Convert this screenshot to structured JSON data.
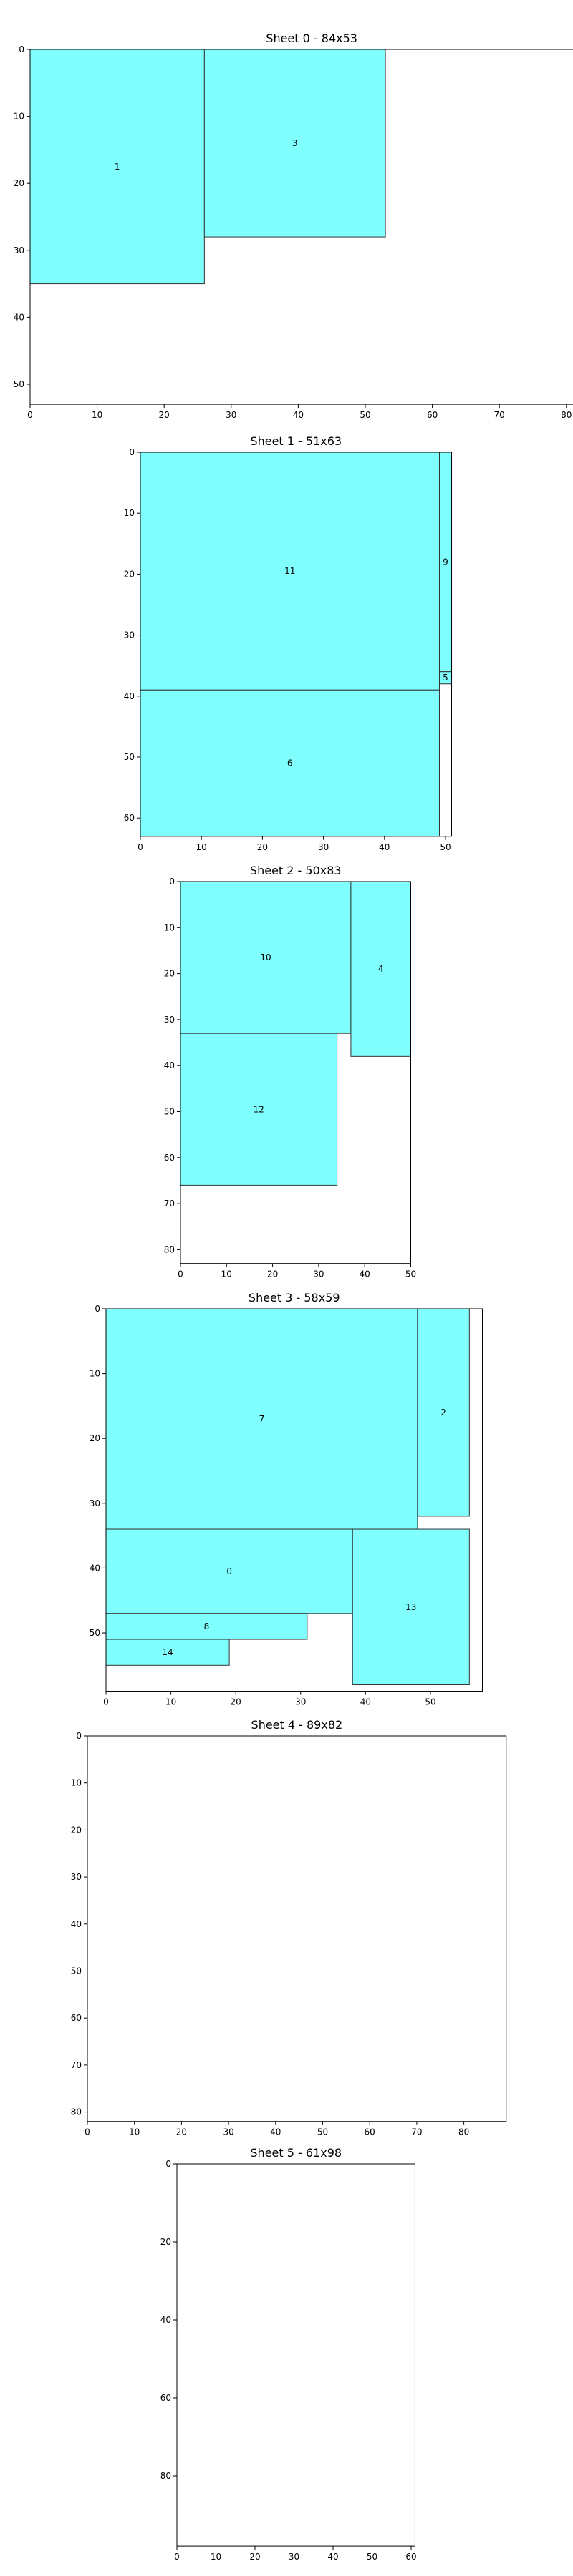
{
  "colors": {
    "piece_fill": "#80ffff",
    "piece_edge": "#333333",
    "sheet_edge": "#000000"
  },
  "chart_data": [
    {
      "type": "rectangles",
      "title": "Sheet 0 - 84x53",
      "xlim": [
        0,
        84
      ],
      "ylim": [
        0,
        53
      ],
      "y_inverted": true,
      "xticks": [
        0,
        10,
        20,
        30,
        40,
        50,
        60,
        70,
        80
      ],
      "yticks": [
        0,
        10,
        20,
        30,
        40,
        50
      ],
      "pieces": [
        {
          "label": "1",
          "x": 0,
          "y": 0,
          "w": 26,
          "h": 35
        },
        {
          "label": "3",
          "x": 26,
          "y": 0,
          "w": 27,
          "h": 28
        }
      ]
    },
    {
      "type": "rectangles",
      "title": "Sheet 1 - 51x63",
      "xlim": [
        0,
        51
      ],
      "ylim": [
        0,
        63
      ],
      "y_inverted": true,
      "xticks": [
        0,
        10,
        20,
        30,
        40,
        50
      ],
      "yticks": [
        0,
        10,
        20,
        30,
        40,
        50,
        60
      ],
      "pieces": [
        {
          "label": "11",
          "x": 0,
          "y": 0,
          "w": 49,
          "h": 39
        },
        {
          "label": "9",
          "x": 49,
          "y": 0,
          "w": 2,
          "h": 36
        },
        {
          "label": "5",
          "x": 49,
          "y": 36,
          "w": 2,
          "h": 2
        },
        {
          "label": "6",
          "x": 0,
          "y": 39,
          "w": 49,
          "h": 24
        }
      ]
    },
    {
      "type": "rectangles",
      "title": "Sheet 2 - 50x83",
      "xlim": [
        0,
        50
      ],
      "ylim": [
        0,
        83
      ],
      "y_inverted": true,
      "xticks": [
        0,
        10,
        20,
        30,
        40,
        50
      ],
      "yticks": [
        0,
        10,
        20,
        30,
        40,
        50,
        60,
        70,
        80
      ],
      "pieces": [
        {
          "label": "10",
          "x": 0,
          "y": 0,
          "w": 37,
          "h": 33
        },
        {
          "label": "4",
          "x": 37,
          "y": 0,
          "w": 13,
          "h": 38
        },
        {
          "label": "12",
          "x": 0,
          "y": 33,
          "w": 34,
          "h": 33
        }
      ]
    },
    {
      "type": "rectangles",
      "title": "Sheet 3 - 58x59",
      "xlim": [
        0,
        58
      ],
      "ylim": [
        0,
        59
      ],
      "y_inverted": true,
      "xticks": [
        0,
        10,
        20,
        30,
        40,
        50
      ],
      "yticks": [
        0,
        10,
        20,
        30,
        40,
        50
      ],
      "pieces": [
        {
          "label": "7",
          "x": 0,
          "y": 0,
          "w": 48,
          "h": 34
        },
        {
          "label": "2",
          "x": 48,
          "y": 0,
          "w": 8,
          "h": 32
        },
        {
          "label": "0",
          "x": 0,
          "y": 34,
          "w": 38,
          "h": 13
        },
        {
          "label": "13",
          "x": 38,
          "y": 34,
          "w": 18,
          "h": 24
        },
        {
          "label": "8",
          "x": 0,
          "y": 47,
          "w": 31,
          "h": 4
        },
        {
          "label": "14",
          "x": 0,
          "y": 51,
          "w": 19,
          "h": 4
        }
      ]
    },
    {
      "type": "rectangles",
      "title": "Sheet 4 - 89x82",
      "xlim": [
        0,
        89
      ],
      "ylim": [
        0,
        82
      ],
      "y_inverted": true,
      "xticks": [
        0,
        10,
        20,
        30,
        40,
        50,
        60,
        70,
        80
      ],
      "yticks": [
        0,
        10,
        20,
        30,
        40,
        50,
        60,
        70,
        80
      ],
      "pieces": []
    },
    {
      "type": "rectangles",
      "title": "Sheet 5 - 61x98",
      "xlim": [
        0,
        61
      ],
      "ylim": [
        0,
        98
      ],
      "y_inverted": true,
      "xticks": [
        0,
        10,
        20,
        30,
        40,
        50,
        60
      ],
      "yticks": [
        0,
        20,
        40,
        60,
        80
      ],
      "pieces": []
    }
  ]
}
